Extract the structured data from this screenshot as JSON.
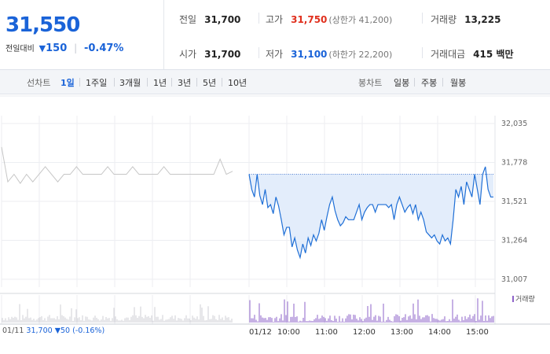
{
  "summary": {
    "price": "31,550",
    "change_label": "전일대비",
    "change_arrow": "▼",
    "change_value": "150",
    "change_pct": "-0.47%",
    "prev_close": {
      "label": "전일",
      "value": "31,700"
    },
    "open": {
      "label": "시가",
      "value": "31,700"
    },
    "high": {
      "label": "고가",
      "value": "31,750",
      "note": "(상한가 41,200)"
    },
    "low": {
      "label": "저가",
      "value": "31,100",
      "note": "(하한가 22,200)"
    },
    "volume": {
      "label": "거래량",
      "value": "13,225"
    },
    "amount": {
      "label": "거래대금",
      "value": "415 백만"
    }
  },
  "tabs": {
    "line_label": "선차트",
    "line_tabs": [
      "1일",
      "1주일",
      "3개월",
      "1년",
      "3년",
      "5년",
      "10년"
    ],
    "active": "1일",
    "candle_label": "봉차트",
    "candle_tabs": [
      "일봉",
      "주봉",
      "월봉"
    ]
  },
  "prevday_info": {
    "date": "01/11",
    "price": "31,700",
    "arrow": "▼",
    "change": "50",
    "pct": "(-0.16%)"
  },
  "volume_legend": "거래량",
  "colors": {
    "accent_blue": "#1a63d8",
    "up_red": "#e0301e",
    "prev_line": "#c6c6c6",
    "today_line": "#1f6fd6",
    "fill": "#e3edfb",
    "volume_bar": "#8e63c9"
  },
  "chart_data": {
    "type": "line",
    "y_ticks": [
      "32,035",
      "31,778",
      "31,521",
      "31,264",
      "31,007"
    ],
    "ylim": [
      31007,
      32035
    ],
    "x_labels": [
      "01/12",
      "10:00",
      "11:00",
      "12:00",
      "13:00",
      "14:00",
      "15:00"
    ],
    "reference_price": 31700,
    "series": [
      {
        "values": [
          31880,
          31650,
          31700,
          31640,
          31700,
          31650,
          31700,
          31750,
          31700,
          31650,
          31700,
          31700,
          31750,
          31700,
          31700,
          31700,
          31700,
          31750,
          31700,
          31700,
          31700,
          31750,
          31700,
          31700,
          31700,
          31700,
          31750,
          31700,
          31700,
          31700,
          31700,
          31700,
          31700,
          31700,
          31700,
          31800,
          31700,
          31720
        ]
      },
      {
        "values": [
          31700,
          31600,
          31550,
          31700,
          31560,
          31500,
          31600,
          31480,
          31500,
          31440,
          31550,
          31490,
          31400,
          31300,
          31350,
          31350,
          31220,
          31280,
          31200,
          31150,
          31240,
          31180,
          31280,
          31230,
          31300,
          31260,
          31310,
          31400,
          31330,
          31420,
          31500,
          31550,
          31460,
          31400,
          31360,
          31380,
          31420,
          31400,
          31400,
          31400,
          31450,
          31500,
          31400,
          31450,
          31480,
          31500,
          31500,
          31450,
          31500,
          31500,
          31500,
          31500,
          31480,
          31500,
          31400,
          31500,
          31550,
          31500,
          31450,
          31480,
          31500,
          31440,
          31500,
          31400,
          31450,
          31400,
          31320,
          31300,
          31280,
          31300,
          31260,
          31240,
          31300,
          31260,
          31280,
          31240,
          31400,
          31600,
          31550,
          31620,
          31500,
          31650,
          31600,
          31550,
          31700,
          31600,
          31500,
          31700,
          31750,
          31600,
          31550,
          31550
        ]
      }
    ]
  }
}
